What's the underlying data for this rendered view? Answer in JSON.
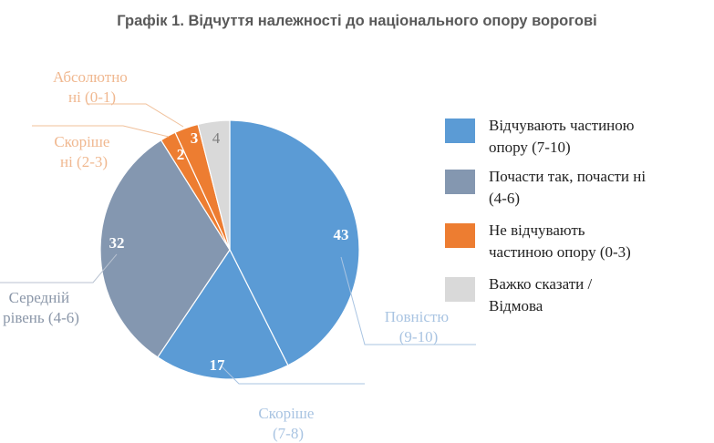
{
  "title": "Графік 1. Відчуття належності до національного опору ворогові",
  "chart_data": {
    "type": "pie",
    "title": "Графік 1. Відчуття належності до національного опору ворогові",
    "start_angle_deg": 0,
    "direction": "clockwise",
    "slices": [
      {
        "label": "Повністю (9-10)",
        "value": 43,
        "color": "#5B9BD5",
        "group": "Відчувають частиною опору (7-10)"
      },
      {
        "label": "Скоріше (7-8)",
        "value": 17,
        "color": "#5B9BD5",
        "group": "Відчувають частиною опору (7-10)"
      },
      {
        "label": "Середній рівень (4-6)",
        "value": 32,
        "color": "#8497B0",
        "group": "Почасти так, почасти ні (4-6)"
      },
      {
        "label": "Скоріше ні (2-3)",
        "value": 2,
        "color": "#ED7D31",
        "group": "Не відчувають частиною опору (0-3)"
      },
      {
        "label": "Абсолютно ні (0-1)",
        "value": 3,
        "color": "#ED7D31",
        "group": "Не відчувають частиною опору (0-3)"
      },
      {
        "label": "",
        "value": 4,
        "color": "#D9D9D9",
        "group": "Важко сказати / Відмова"
      }
    ],
    "legend": [
      {
        "label": "Відчувають частиною опору (7-10)",
        "color": "#5B9BD5"
      },
      {
        "label": "Почасти так, почасти ні (4-6)",
        "color": "#8497B0"
      },
      {
        "label": "Не відчувають частиною опору (0-3)",
        "color": "#ED7D31"
      },
      {
        "label": "Важко сказати / Відмова",
        "color": "#D9D9D9"
      }
    ],
    "legend_position": "right"
  },
  "labels": {
    "full": [
      "Повністю",
      "(9-10)"
    ],
    "rather": [
      "Скоріше",
      "(7-8)"
    ],
    "mid": [
      "Середній",
      "рівень (4-6)"
    ],
    "rather_no": [
      "Скоріше",
      "ні (2-3)"
    ],
    "absolutely_no": [
      "Абсолютно",
      "ні (0-1)"
    ]
  },
  "values": {
    "v43": "43",
    "v17": "17",
    "v32": "32",
    "v2": "2",
    "v3": "3",
    "v4": "4"
  },
  "legend": {
    "items": [
      {
        "text": "Відчувають частиною\nопору (7-10)",
        "color": "#5B9BD5"
      },
      {
        "text": "Почасти так, почасти ні\n(4-6)",
        "color": "#8497B0"
      },
      {
        "text": "Не відчувають\nчастиною опору (0-3)",
        "color": "#ED7D31"
      },
      {
        "text": "Важко сказати /\nВідмова",
        "color": "#D9D9D9"
      }
    ]
  }
}
